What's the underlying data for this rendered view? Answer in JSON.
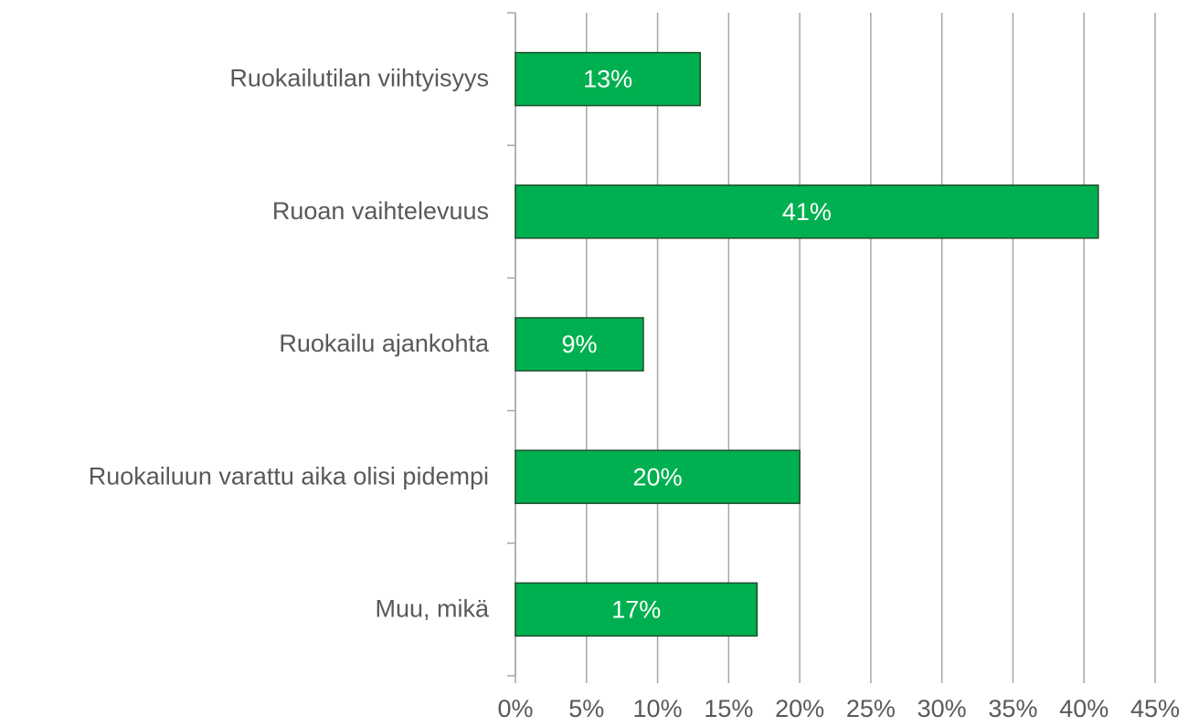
{
  "chart_data": {
    "type": "bar",
    "orientation": "horizontal",
    "categories": [
      "Ruokailutilan viihtyisyys",
      "Ruoan vaihtelevuus",
      "Ruokailu ajankohta",
      "Ruokailuun varattu aika olisi pidempi",
      "Muu, mikä"
    ],
    "values": [
      13,
      41,
      9,
      20,
      17
    ],
    "value_labels": [
      "13%",
      "41%",
      "9%",
      "20%",
      "17%"
    ],
    "color": "#00b050",
    "xlim": [
      0,
      45
    ],
    "xticks": [
      {
        "value": 0,
        "label": "0%"
      },
      {
        "value": 5,
        "label": "5%"
      },
      {
        "value": 10,
        "label": "10%"
      },
      {
        "value": 15,
        "label": "15%"
      },
      {
        "value": 20,
        "label": "20%"
      },
      {
        "value": 25,
        "label": "25%"
      },
      {
        "value": 30,
        "label": "30%"
      },
      {
        "value": 35,
        "label": "35%"
      },
      {
        "value": 40,
        "label": "40%"
      },
      {
        "value": 45,
        "label": "45%"
      }
    ],
    "grid": true
  }
}
